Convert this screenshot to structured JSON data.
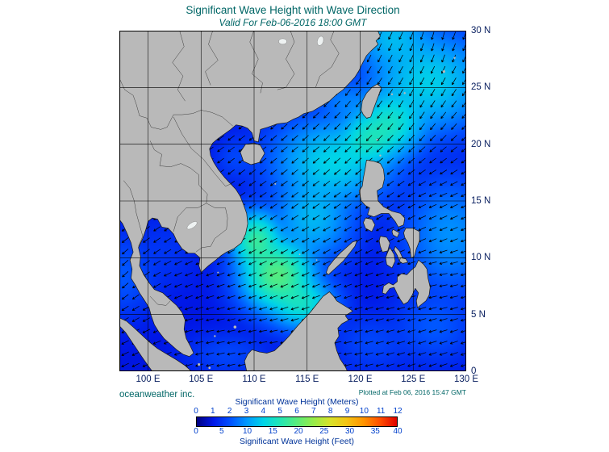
{
  "header": {
    "title": "Significant Wave Height with Wave Direction",
    "subtitle": "Valid For Feb-06-2016 18:00 GMT"
  },
  "footer": {
    "branding": "oceanweather inc.",
    "plotted_at": "Plotted at Feb 06, 2016 15:47 GMT"
  },
  "colors": {
    "title": "#006666",
    "axis_labels": "#0b2161",
    "colorbar_titles": "#003399",
    "colorbar_numbers": "#0040cc",
    "land": "#b9b9b9",
    "coastline": "#1a1a1a",
    "grid": "#000000",
    "arrows": "#000000",
    "ocean_low": "#000080",
    "ocean_high": "#e00000"
  },
  "map": {
    "lon_min": 97.3,
    "lon_max": 130,
    "lat_min": 0,
    "lat_max": 30,
    "lon_ticks": [
      {
        "value": 100,
        "label": "100 E"
      },
      {
        "value": 105,
        "label": "105 E"
      },
      {
        "value": 110,
        "label": "110 E"
      },
      {
        "value": 115,
        "label": "115 E"
      },
      {
        "value": 120,
        "label": "120 E"
      },
      {
        "value": 125,
        "label": "125 E"
      },
      {
        "value": 130,
        "label": "130 E"
      }
    ],
    "lat_ticks": [
      {
        "value": 30,
        "label": "30 N"
      },
      {
        "value": 25,
        "label": "25 N"
      },
      {
        "value": 20,
        "label": "20 N"
      },
      {
        "value": 15,
        "label": "15 N"
      },
      {
        "value": 10,
        "label": "10 N"
      },
      {
        "value": 5,
        "label": "5 N"
      },
      {
        "value": 0,
        "label": "0"
      }
    ]
  },
  "colorbar": {
    "title_meters": "Significant Wave Height (Meters)",
    "title_feet": "Significant Wave Height (Feet)",
    "meter_ticks": [
      0,
      1,
      2,
      3,
      4,
      5,
      6,
      7,
      8,
      9,
      10,
      11,
      12
    ],
    "feet_ticks": [
      0,
      5,
      10,
      15,
      20,
      25,
      30,
      35,
      40
    ],
    "max_meters": 12,
    "stops": [
      {
        "value": 0,
        "color": "#000080"
      },
      {
        "value": 1,
        "color": "#0018e8"
      },
      {
        "value": 2,
        "color": "#0050ff"
      },
      {
        "value": 3,
        "color": "#0098ff"
      },
      {
        "value": 4,
        "color": "#00d4e8"
      },
      {
        "value": 5,
        "color": "#22e6b4"
      },
      {
        "value": 6,
        "color": "#58ec7c"
      },
      {
        "value": 7,
        "color": "#96ec4a"
      },
      {
        "value": 8,
        "color": "#d8e22a"
      },
      {
        "value": 9,
        "color": "#f4c414"
      },
      {
        "value": 10,
        "color": "#ff9400"
      },
      {
        "value": 11,
        "color": "#ff4e00"
      },
      {
        "value": 12,
        "color": "#e00000"
      }
    ]
  },
  "chart_data": {
    "type": "heatmap",
    "units_primary": "meters",
    "units_secondary": "feet",
    "lon_range": [
      97.3,
      130
    ],
    "lat_range": [
      0,
      30
    ],
    "grid_interval_deg": 5,
    "background_hs_m": 0.9,
    "wave_height_peaks": [
      {
        "lon": 110.2,
        "lat": 11.5,
        "hs": 5.3,
        "sx": 1.8,
        "sy": 2.0
      },
      {
        "lon": 112.2,
        "lat": 8.5,
        "hs": 5.9,
        "sx": 2.6,
        "sy": 2.4
      },
      {
        "lon": 114.5,
        "lat": 6.0,
        "hs": 4.5,
        "sx": 2.4,
        "sy": 1.8
      },
      {
        "lon": 117.5,
        "lat": 18.5,
        "hs": 4.0,
        "sx": 4.5,
        "sy": 3.0
      },
      {
        "lon": 120.8,
        "lat": 20.5,
        "hs": 4.3,
        "sx": 2.2,
        "sy": 2.0
      },
      {
        "lon": 122.8,
        "lat": 21.8,
        "hs": 4.5,
        "sx": 2.6,
        "sy": 2.4
      },
      {
        "lon": 126.5,
        "lat": 25.5,
        "hs": 3.9,
        "sx": 4.5,
        "sy": 3.5
      },
      {
        "lon": 123.0,
        "lat": 29.5,
        "hs": 3.5,
        "sx": 3.0,
        "sy": 2.5
      },
      {
        "lon": 115.5,
        "lat": 13.5,
        "hs": 3.5,
        "sx": 3.0,
        "sy": 3.0
      },
      {
        "lon": 128.5,
        "lat": 12.0,
        "hs": 2.9,
        "sx": 3.5,
        "sy": 4.0
      },
      {
        "lon": 127.0,
        "lat": 4.0,
        "hs": 2.1,
        "sx": 3.0,
        "sy": 2.5
      },
      {
        "lon": 108.3,
        "lat": 18.8,
        "hs": 1.8,
        "sx": 1.6,
        "sy": 1.5
      },
      {
        "lon": 118.5,
        "lat": 23.8,
        "hs": 2.6,
        "sx": 2.2,
        "sy": 1.6
      },
      {
        "lon": 107.5,
        "lat": 1.5,
        "hs": 1.8,
        "sx": 3.0,
        "sy": 1.5
      },
      {
        "lon": 121.0,
        "lat": 2.5,
        "hs": 1.8,
        "sx": 3.0,
        "sy": 2.0
      },
      {
        "lon": 101.5,
        "lat": 10.5,
        "hs": 1.5,
        "sx": 2.5,
        "sy": 2.5
      },
      {
        "lon": 97.5,
        "lat": 8.5,
        "hs": 2.1,
        "sx": 2.5,
        "sy": 2.8
      }
    ],
    "wave_directions": [
      {
        "lon": 127.0,
        "lat": 29.0,
        "toward_deg": 190
      },
      {
        "lon": 121.5,
        "lat": 28.5,
        "toward_deg": 200
      },
      {
        "lon": 125.0,
        "lat": 24.0,
        "toward_deg": 205
      },
      {
        "lon": 120.5,
        "lat": 23.0,
        "toward_deg": 215
      },
      {
        "lon": 118.5,
        "lat": 20.0,
        "toward_deg": 225
      },
      {
        "lon": 121.0,
        "lat": 17.5,
        "toward_deg": 232
      },
      {
        "lon": 115.0,
        "lat": 16.0,
        "toward_deg": 230
      },
      {
        "lon": 112.0,
        "lat": 20.0,
        "toward_deg": 228
      },
      {
        "lon": 117.0,
        "lat": 12.0,
        "toward_deg": 242
      },
      {
        "lon": 112.0,
        "lat": 10.0,
        "toward_deg": 240
      },
      {
        "lon": 109.5,
        "lat": 6.0,
        "toward_deg": 255
      },
      {
        "lon": 106.0,
        "lat": 4.0,
        "toward_deg": 265
      },
      {
        "lon": 103.0,
        "lat": 8.0,
        "toward_deg": 250
      },
      {
        "lon": 100.5,
        "lat": 12.0,
        "toward_deg": 235
      },
      {
        "lon": 107.5,
        "lat": 19.0,
        "toward_deg": 233
      },
      {
        "lon": 127.0,
        "lat": 15.0,
        "toward_deg": 250
      },
      {
        "lon": 127.5,
        "lat": 8.0,
        "toward_deg": 263
      },
      {
        "lon": 122.5,
        "lat": 6.0,
        "toward_deg": 260
      },
      {
        "lon": 117.5,
        "lat": 3.0,
        "toward_deg": 265
      },
      {
        "lon": 111.0,
        "lat": 2.0,
        "toward_deg": 268
      },
      {
        "lon": 98.0,
        "lat": 9.0,
        "toward_deg": 220
      }
    ]
  }
}
